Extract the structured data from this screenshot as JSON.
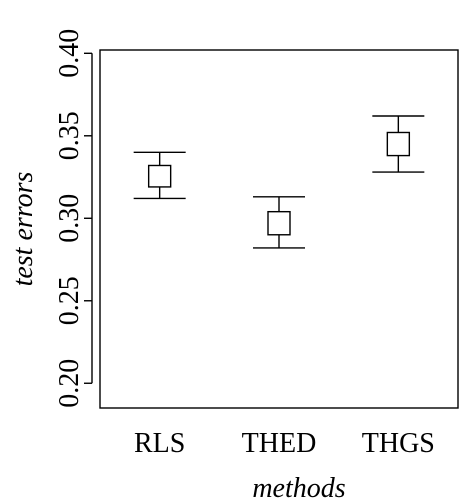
{
  "chart_data": {
    "type": "errorbar",
    "title": "",
    "xlabel": "methods",
    "ylabel": "test errors",
    "categories": [
      "RLS",
      "THED",
      "THGS"
    ],
    "series": [
      {
        "values": [
          0.326,
          0.297,
          0.345
        ],
        "box_low": [
          0.319,
          0.29,
          0.338
        ],
        "box_high": [
          0.332,
          0.304,
          0.352
        ],
        "whisker_low": [
          0.312,
          0.282,
          0.328
        ],
        "whisker_high": [
          0.34,
          0.313,
          0.362
        ]
      }
    ],
    "ylim": [
      0.185,
      0.402
    ],
    "yticks": [
      0.2,
      0.25,
      0.3,
      0.35,
      0.4
    ],
    "ytick_labels": [
      "0.20",
      "0.25",
      "0.30",
      "0.35",
      "0.40"
    ],
    "grid": false,
    "legend": "none"
  }
}
